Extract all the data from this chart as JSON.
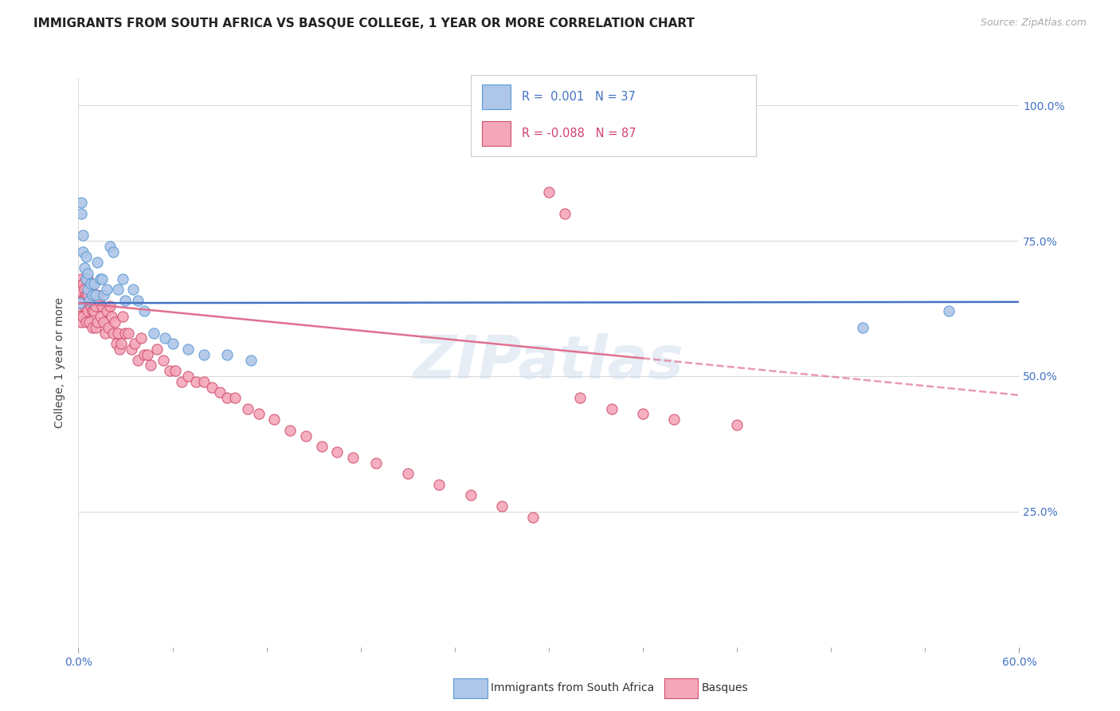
{
  "title": "IMMIGRANTS FROM SOUTH AFRICA VS BASQUE COLLEGE, 1 YEAR OR MORE CORRELATION CHART",
  "source": "Source: ZipAtlas.com",
  "ylabel": "College, 1 year or more",
  "y_tick_labels": [
    "25.0%",
    "50.0%",
    "75.0%",
    "100.0%"
  ],
  "y_tick_values": [
    0.25,
    0.5,
    0.75,
    1.0
  ],
  "x_minor_ticks": [
    0.06,
    0.12,
    0.18,
    0.24,
    0.3,
    0.36,
    0.42,
    0.48,
    0.54
  ],
  "series1_color": "#aec6e8",
  "series1_edge": "#5b9bd5",
  "series2_color": "#f4a7b9",
  "series2_edge": "#d05070",
  "trend1_color": "#4472c4",
  "trend2_color": "#e07090",
  "background": "#ffffff",
  "watermark": "ZIPatlas",
  "trend1_y0": 0.635,
  "trend1_y1": 0.637,
  "trend2_y0": 0.635,
  "trend2_y1": 0.465,
  "series1_x": [
    0.001,
    0.002,
    0.002,
    0.003,
    0.003,
    0.004,
    0.005,
    0.005,
    0.006,
    0.006,
    0.007,
    0.008,
    0.009,
    0.01,
    0.011,
    0.012,
    0.014,
    0.015,
    0.016,
    0.018,
    0.02,
    0.022,
    0.025,
    0.028,
    0.03,
    0.035,
    0.038,
    0.042,
    0.048,
    0.055,
    0.06,
    0.07,
    0.08,
    0.095,
    0.11,
    0.5,
    0.555
  ],
  "series1_y": [
    0.635,
    0.8,
    0.82,
    0.76,
    0.73,
    0.7,
    0.68,
    0.72,
    0.66,
    0.69,
    0.64,
    0.67,
    0.65,
    0.67,
    0.65,
    0.71,
    0.68,
    0.68,
    0.65,
    0.66,
    0.74,
    0.73,
    0.66,
    0.68,
    0.64,
    0.66,
    0.64,
    0.62,
    0.58,
    0.57,
    0.56,
    0.55,
    0.54,
    0.54,
    0.53,
    0.59,
    0.62
  ],
  "series2_x": [
    0.001,
    0.001,
    0.001,
    0.002,
    0.002,
    0.002,
    0.003,
    0.003,
    0.003,
    0.004,
    0.004,
    0.005,
    0.005,
    0.005,
    0.006,
    0.006,
    0.006,
    0.007,
    0.007,
    0.008,
    0.008,
    0.009,
    0.009,
    0.01,
    0.01,
    0.011,
    0.011,
    0.012,
    0.012,
    0.013,
    0.014,
    0.015,
    0.016,
    0.017,
    0.018,
    0.019,
    0.02,
    0.021,
    0.022,
    0.023,
    0.024,
    0.025,
    0.026,
    0.027,
    0.028,
    0.03,
    0.032,
    0.034,
    0.036,
    0.038,
    0.04,
    0.042,
    0.044,
    0.046,
    0.05,
    0.054,
    0.058,
    0.062,
    0.066,
    0.07,
    0.075,
    0.08,
    0.085,
    0.09,
    0.095,
    0.1,
    0.108,
    0.115,
    0.125,
    0.135,
    0.145,
    0.155,
    0.165,
    0.175,
    0.19,
    0.21,
    0.23,
    0.25,
    0.27,
    0.29,
    0.3,
    0.31,
    0.32,
    0.34,
    0.36,
    0.38,
    0.42
  ],
  "series2_y": [
    0.66,
    0.63,
    0.61,
    0.68,
    0.64,
    0.6,
    0.67,
    0.64,
    0.61,
    0.66,
    0.63,
    0.68,
    0.65,
    0.6,
    0.68,
    0.65,
    0.62,
    0.66,
    0.6,
    0.66,
    0.63,
    0.62,
    0.59,
    0.65,
    0.62,
    0.63,
    0.59,
    0.65,
    0.6,
    0.64,
    0.61,
    0.63,
    0.6,
    0.58,
    0.62,
    0.59,
    0.63,
    0.61,
    0.58,
    0.6,
    0.56,
    0.58,
    0.55,
    0.56,
    0.61,
    0.58,
    0.58,
    0.55,
    0.56,
    0.53,
    0.57,
    0.54,
    0.54,
    0.52,
    0.55,
    0.53,
    0.51,
    0.51,
    0.49,
    0.5,
    0.49,
    0.49,
    0.48,
    0.47,
    0.46,
    0.46,
    0.44,
    0.43,
    0.42,
    0.4,
    0.39,
    0.37,
    0.36,
    0.35,
    0.34,
    0.32,
    0.3,
    0.28,
    0.26,
    0.24,
    0.84,
    0.8,
    0.46,
    0.44,
    0.43,
    0.42,
    0.41
  ]
}
